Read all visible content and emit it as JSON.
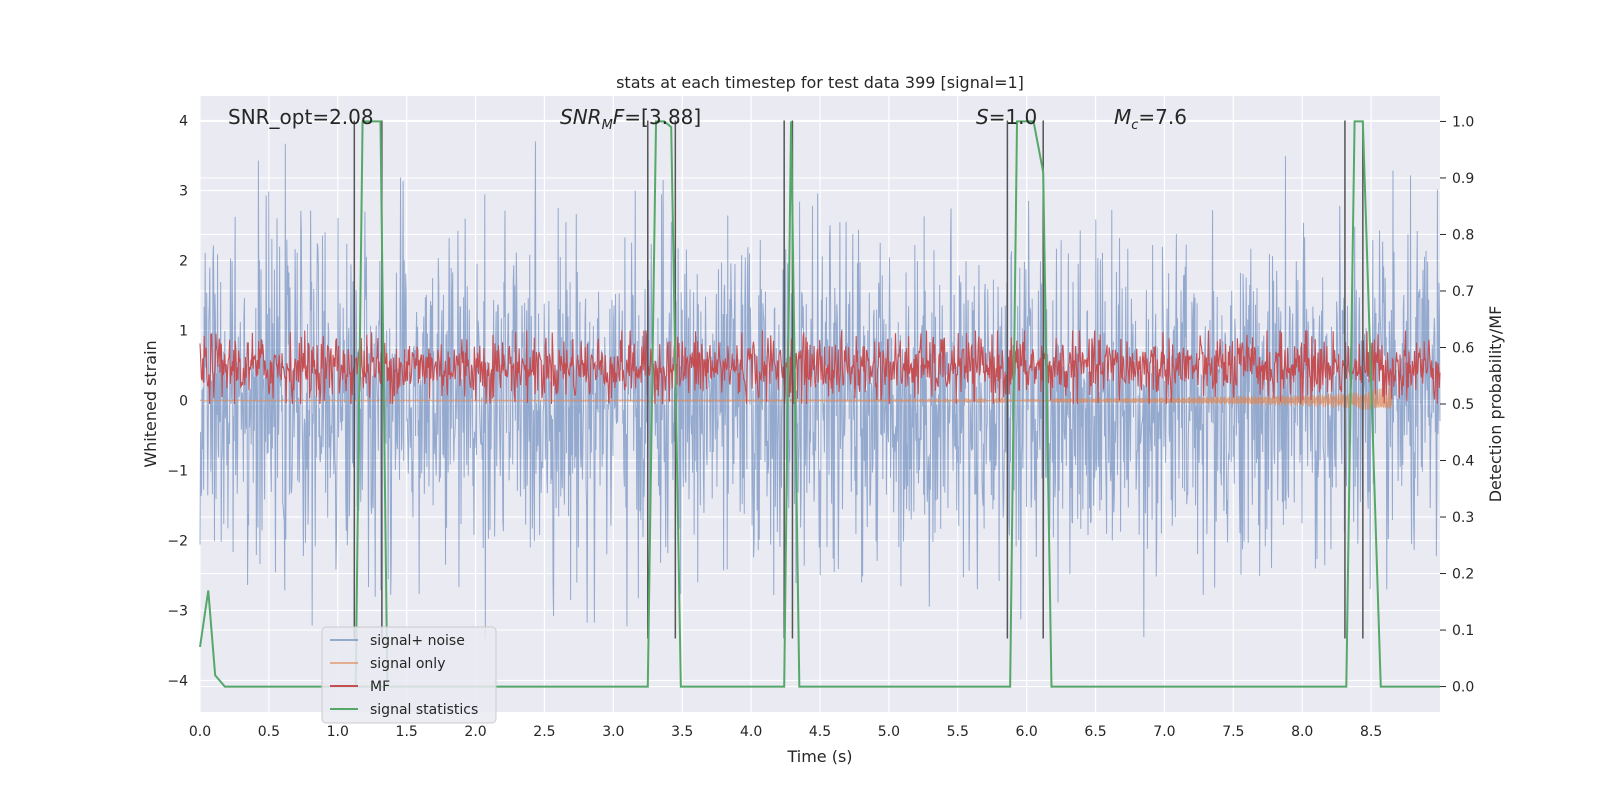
{
  "chart_data": {
    "type": "line",
    "title": "stats at each timestep for test data 399 [signal=1]",
    "xlabel": "Time (s)",
    "ylabel": "Whitened strain",
    "ylabel_right": "Detection probability/MF",
    "xlim": [
      0.0,
      9.0
    ],
    "ylim": [
      -4.45,
      4.35
    ],
    "ylim_right": [
      -0.045,
      1.045
    ],
    "xticks": [
      0.0,
      0.5,
      1.0,
      1.5,
      2.0,
      2.5,
      3.0,
      3.5,
      4.0,
      4.5,
      5.0,
      5.5,
      6.0,
      6.5,
      7.0,
      7.5,
      8.0,
      8.5
    ],
    "xtick_labels": [
      "0.0",
      "0.5",
      "1.0",
      "1.5",
      "2.0",
      "2.5",
      "3.0",
      "3.5",
      "4.0",
      "4.5",
      "5.0",
      "5.5",
      "6.0",
      "6.5",
      "7.0",
      "7.5",
      "8.0",
      "8.5"
    ],
    "yticks": [
      4,
      3,
      2,
      1,
      0,
      -1,
      -2,
      -3,
      -4
    ],
    "ytick_labels": [
      "4",
      "3",
      "2",
      "1",
      "0",
      "−1",
      "−2",
      "−3",
      "−4"
    ],
    "yticks_right": [
      1.0,
      0.9,
      0.8,
      0.7,
      0.6,
      0.5,
      0.4,
      0.3,
      0.2,
      0.1,
      0.0
    ],
    "ytick_labels_right": [
      "1.0",
      "0.9",
      "0.8",
      "0.7",
      "0.6",
      "0.5",
      "0.4",
      "0.3",
      "0.2",
      "0.1",
      "0.0"
    ],
    "grid": true,
    "legend_position": "lower-left",
    "annotations": [
      {
        "text": "SNR_opt=2.08",
        "x": 0.2,
        "y": 3.9
      },
      {
        "text": "SNR_MF=[3.88]",
        "x": 2.6,
        "y": 3.9
      },
      {
        "text": "S=1.0",
        "x": 5.6,
        "y": 3.9
      },
      {
        "text": "M_c=7.6",
        "x": 6.6,
        "y": 3.9
      }
    ],
    "series": [
      {
        "name": "signal+ noise",
        "color": "#4c72b0",
        "axis": "left",
        "description": "noise ranging roughly between -3.5 and 3.7",
        "amplitude_envelope": [
          -3.4,
          3.7
        ]
      },
      {
        "name": "signal only",
        "color": "#dd8452",
        "axis": "left",
        "description": "chirp near 0, grows at the end",
        "x": [
          0.0,
          5.0,
          6.0,
          7.0,
          8.0,
          8.4,
          8.6,
          8.65
        ],
        "amplitude": [
          0.005,
          0.01,
          0.02,
          0.04,
          0.08,
          0.12,
          0.18,
          0.2
        ]
      },
      {
        "name": "MF",
        "color": "#c44e52",
        "axis": "right",
        "description": "matched-filter output fluctuating roughly between 0.5 and 0.63",
        "range": [
          0.5,
          0.63
        ]
      },
      {
        "name": "signal statistics",
        "color": "#55a868",
        "axis": "right",
        "x": [
          0.0,
          0.06,
          0.11,
          0.18,
          3.25,
          3.31,
          3.37,
          3.42,
          3.49,
          4.24,
          4.29,
          4.35,
          5.88,
          5.93,
          6.05,
          6.12,
          6.18,
          8.32,
          8.38,
          8.44,
          8.57,
          9.0
        ],
        "y": [
          0.07,
          0.17,
          0.02,
          0.0,
          0.0,
          1.0,
          1.0,
          0.99,
          0.0,
          0.0,
          1.0,
          0.0,
          0.0,
          1.0,
          1.0,
          0.91,
          0.0,
          0.0,
          1.0,
          1.0,
          0.0,
          0.0
        ],
        "extra_segment": {
          "x": [
            1.13,
            1.18,
            1.31,
            1.36
          ],
          "y": [
            0.0,
            1.0,
            1.0,
            0.0
          ]
        }
      }
    ],
    "vertical_markers": [
      1.12,
      1.32,
      3.25,
      3.45,
      4.24,
      4.3,
      5.86,
      6.12,
      8.31,
      8.44
    ]
  }
}
